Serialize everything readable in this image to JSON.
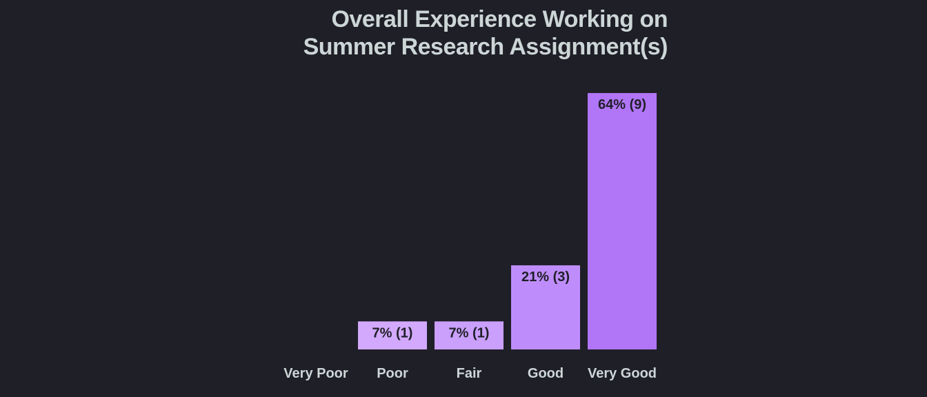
{
  "chart_data": {
    "type": "bar",
    "title_lines": [
      "Overall Experience Working on",
      "Summer Research Assignment(s)"
    ],
    "categories": [
      "Very Poor",
      "Poor",
      "Fair",
      "Good",
      "Very Good"
    ],
    "values": [
      0,
      7,
      7,
      21,
      64
    ],
    "counts": [
      0,
      1,
      1,
      3,
      9
    ],
    "data_labels": [
      "",
      "7% (1)",
      "7% (1)",
      "21% (3)",
      "64% (9)"
    ],
    "ylim": [
      0,
      64
    ],
    "grid": false,
    "colors": [
      "#d8b4fe",
      "#d2a9fd",
      "#caa0fc",
      "#bf8dfb",
      "#b175f8"
    ]
  }
}
